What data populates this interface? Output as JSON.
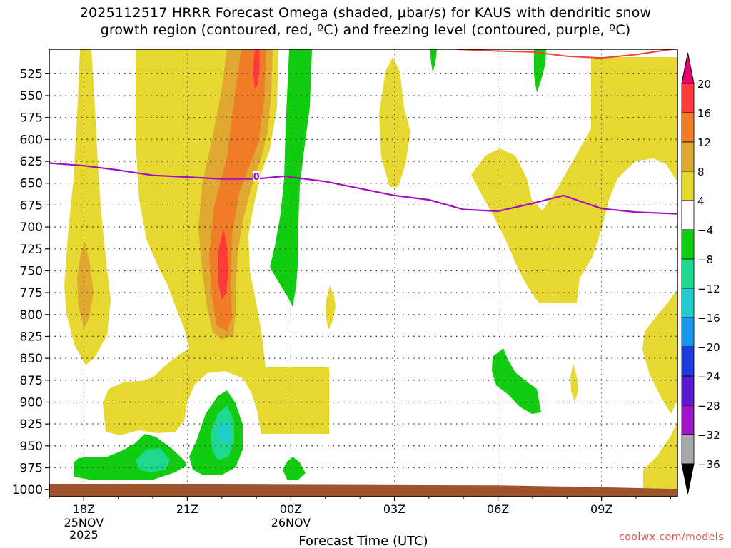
{
  "header": {
    "title_line1": "2025112517 HRRR Forecast Omega (shaded, μbar/s) for KAUS with dendritic snow",
    "title_line2": "growth region (contoured, red, ºC) and freezing level (contoured, purple, ºC)"
  },
  "watermark": "coolwx.com/models",
  "chart_data": {
    "type": "heatmap",
    "xlabel": "Forecast Time (UTC)",
    "x_ticks": [
      {
        "hour": 18,
        "label": "18Z",
        "sub1": "25NOV",
        "sub2": "2025"
      },
      {
        "hour": 21,
        "label": "21Z",
        "sub1": "",
        "sub2": ""
      },
      {
        "hour": 24,
        "label": "00Z",
        "sub1": "26NOV",
        "sub2": ""
      },
      {
        "hour": 27,
        "label": "03Z",
        "sub1": "",
        "sub2": ""
      },
      {
        "hour": 30,
        "label": "06Z",
        "sub1": "",
        "sub2": ""
      },
      {
        "hour": 33,
        "label": "09Z",
        "sub1": "",
        "sub2": ""
      }
    ],
    "xlim": [
      17,
      35.2
    ],
    "y_ticks": [
      525,
      550,
      575,
      600,
      625,
      650,
      675,
      700,
      725,
      750,
      775,
      800,
      825,
      850,
      875,
      900,
      925,
      950,
      975,
      1000
    ],
    "ylim": [
      1008,
      497
    ],
    "grid": true,
    "colorbar": {
      "levels": [
        {
          "lo": 20,
          "hi": null,
          "color": "#e8006e"
        },
        {
          "lo": 16,
          "hi": 20,
          "color": "#ff3a3a"
        },
        {
          "lo": 12,
          "hi": 16,
          "color": "#f07c28"
        },
        {
          "lo": 8,
          "hi": 12,
          "color": "#e0a830"
        },
        {
          "lo": 4,
          "hi": 8,
          "color": "#e6d830"
        },
        {
          "lo": -4,
          "hi": 4,
          "color": "#ffffff"
        },
        {
          "lo": -8,
          "hi": -4,
          "color": "#12cc12"
        },
        {
          "lo": -12,
          "hi": -8,
          "color": "#1ed890"
        },
        {
          "lo": -16,
          "hi": -12,
          "color": "#20cccc"
        },
        {
          "lo": -20,
          "hi": -16,
          "color": "#1a96ee"
        },
        {
          "lo": -24,
          "hi": -20,
          "color": "#1a3cdc"
        },
        {
          "lo": -28,
          "hi": -24,
          "color": "#5a18d0"
        },
        {
          "lo": -32,
          "hi": -28,
          "color": "#a014c8"
        },
        {
          "lo": -36,
          "hi": -32,
          "color": "#a8a8a8"
        },
        {
          "lo": null,
          "hi": -36,
          "color": "#000000"
        }
      ],
      "labels": [
        "20",
        "16",
        "12",
        "8",
        "4",
        "−4",
        "−8",
        "−12",
        "−16",
        "−20",
        "−24",
        "−28",
        "−32",
        "−36"
      ]
    },
    "freezing_level": {
      "label": "0",
      "label_point": [
        23.0,
        642
      ],
      "color": "#a010c0",
      "points": [
        [
          17.0,
          627
        ],
        [
          18.0,
          630
        ],
        [
          19.0,
          635
        ],
        [
          20.0,
          641
        ],
        [
          21.0,
          643
        ],
        [
          22.0,
          645
        ],
        [
          23.0,
          645
        ],
        [
          23.8,
          642
        ],
        [
          25.0,
          648
        ],
        [
          26.0,
          656
        ],
        [
          27.0,
          664
        ],
        [
          28.0,
          669
        ],
        [
          29.0,
          680
        ],
        [
          30.0,
          682
        ],
        [
          31.0,
          673
        ],
        [
          31.9,
          664
        ],
        [
          33.0,
          679
        ],
        [
          34.0,
          683
        ],
        [
          35.2,
          685
        ]
      ]
    },
    "dgz_contour": {
      "color": "#ee4430",
      "points": [
        [
          28.8,
          497
        ],
        [
          30.0,
          499
        ],
        [
          31.0,
          500
        ],
        [
          32.0,
          505
        ],
        [
          33.0,
          507
        ],
        [
          34.0,
          503
        ],
        [
          35.2,
          496
        ]
      ]
    },
    "ground": {
      "color": "#a0522d",
      "top_pressure": 996
    }
  }
}
